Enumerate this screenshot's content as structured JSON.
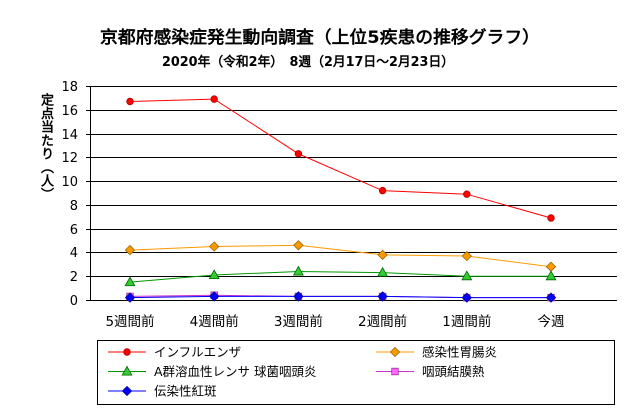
{
  "chart_data": {
    "type": "line",
    "title": "京都府感染症発生動向調査（上位5疾患の推移グラフ）",
    "subtitle": "2020年（令和2年）　8週（2月17日～2月23日）",
    "ylabel": "定点当たり（人）",
    "ylim": [
      0,
      18
    ],
    "y_ticks": [
      0,
      2,
      4,
      6,
      8,
      10,
      12,
      14,
      16,
      18
    ],
    "grid": true,
    "legend_position": "bottom",
    "categories": [
      "5週間前",
      "4週間前",
      "3週間前",
      "2週間前",
      "1週間前",
      "今週"
    ],
    "series": [
      {
        "name": "インフルエンザ",
        "color": "#FF0000",
        "marker": "circle",
        "marker_fill": "#FF0000",
        "marker_edge": "#B00000",
        "values": [
          16.7,
          16.9,
          12.3,
          9.2,
          8.9,
          6.9
        ]
      },
      {
        "name": "感染性胃腸炎",
        "color": "#FF9900",
        "marker": "diamond",
        "marker_fill": "#FF9900",
        "marker_edge": "#996600",
        "values": [
          4.2,
          4.5,
          4.6,
          3.8,
          3.7,
          2.8
        ]
      },
      {
        "name": "A群溶血性レンサ 球菌咽頭炎",
        "color": "#009900",
        "marker": "triangle",
        "marker_fill": "#33CC33",
        "marker_edge": "#006600",
        "values": [
          1.5,
          2.1,
          2.4,
          2.3,
          2.0,
          2.0
        ]
      },
      {
        "name": "咽頭結膜熱",
        "color": "#CC33CC",
        "marker": "square",
        "marker_fill": "#FF66FF",
        "marker_edge": "#993399",
        "values": [
          0.3,
          0.4,
          0.3,
          0.3,
          0.2,
          0.2
        ]
      },
      {
        "name": "伝染性紅斑",
        "color": "#0000FF",
        "marker": "diamond",
        "marker_fill": "#0000FF",
        "marker_edge": "#000099",
        "values": [
          0.2,
          0.3,
          0.3,
          0.3,
          0.2,
          0.2
        ]
      }
    ]
  }
}
